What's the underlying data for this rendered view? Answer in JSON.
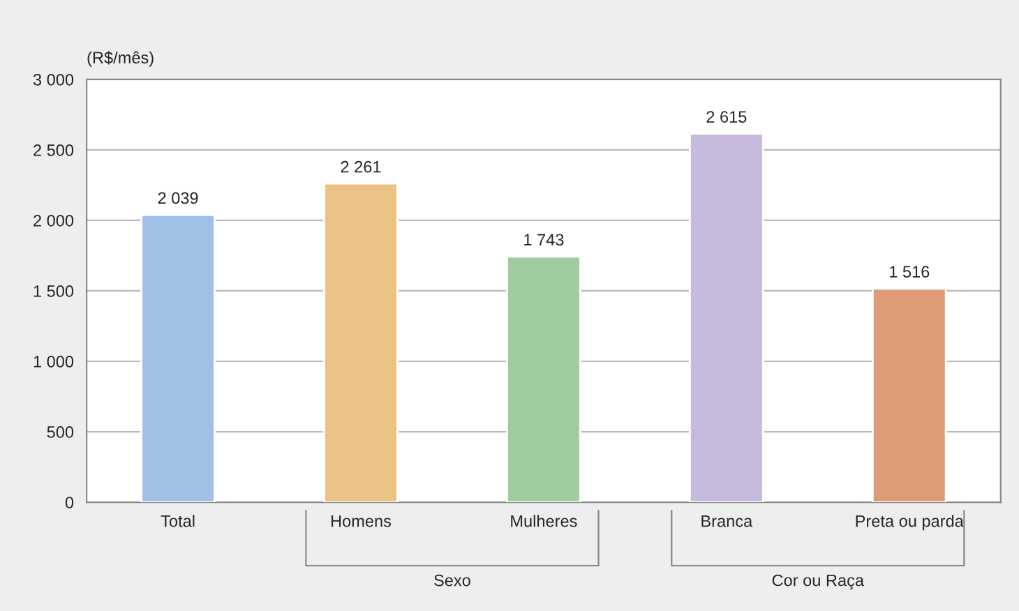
{
  "chart_data": {
    "type": "bar",
    "ylabel": "(R$/mês)",
    "categories": [
      "Total",
      "Homens",
      "Mulheres",
      "Branca",
      "Preta ou parda"
    ],
    "values": [
      2039,
      2261,
      1743,
      2615,
      1516
    ],
    "colors": [
      "#a1c0e6",
      "#ebc285",
      "#9fcc9f",
      "#c5b9dc",
      "#df9b78"
    ],
    "value_labels": [
      "2 039",
      "2 261",
      "1 743",
      "2 615",
      "1 516"
    ],
    "ylim": [
      0,
      3000
    ],
    "yticks": [
      {
        "value": 0,
        "label": "0"
      },
      {
        "value": 500,
        "label": "500"
      },
      {
        "value": 1000,
        "label": "1 000"
      },
      {
        "value": 1500,
        "label": "1 500"
      },
      {
        "value": 2000,
        "label": "2 000"
      },
      {
        "value": 2500,
        "label": "2 500"
      },
      {
        "value": 3000,
        "label": "3 000"
      }
    ],
    "grid": "y",
    "annotations": [
      "Sexo",
      "Cor ou Raça"
    ]
  }
}
